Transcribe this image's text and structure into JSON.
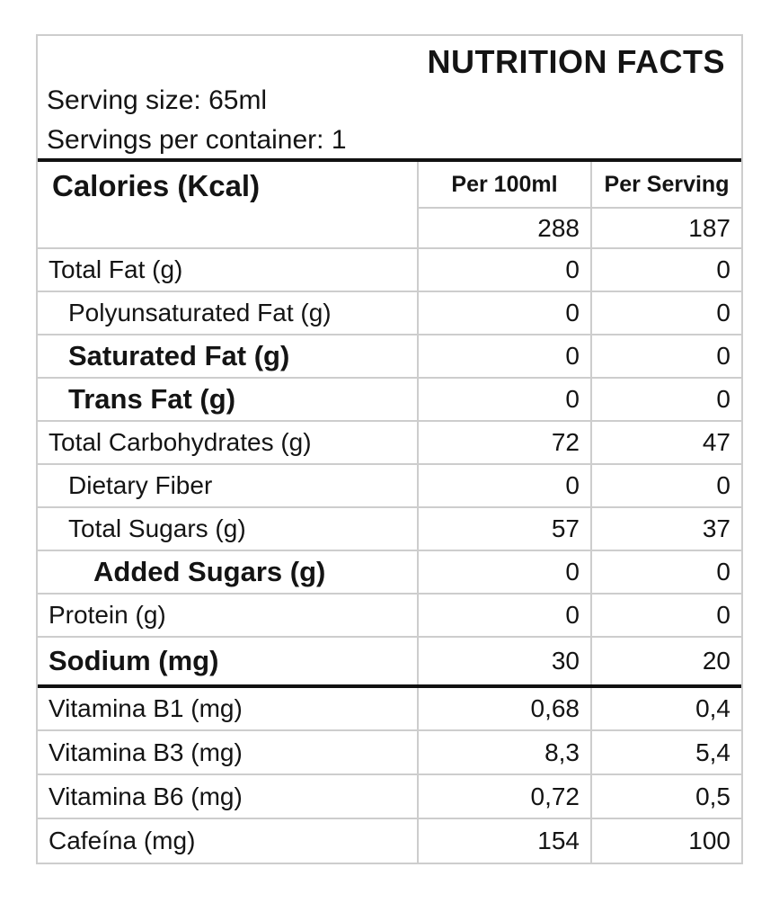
{
  "header": {
    "title": "NUTRITION FACTS",
    "serving_size": "Serving size: 65ml",
    "servings_per_container": "Servings per container: 1"
  },
  "table": {
    "calories_label": "Calories (Kcal)",
    "columns": {
      "per_100ml": "Per 100ml",
      "per_serving": "Per Serving"
    },
    "calories_values": {
      "per_100ml": "288",
      "per_serving": "187"
    },
    "rows": [
      {
        "label": "Total Fat (g)",
        "per_100ml": "0",
        "per_serving": "0"
      },
      {
        "label": "Polyunsaturated Fat (g)",
        "per_100ml": "0",
        "per_serving": "0"
      },
      {
        "label": "Saturated Fat (g)",
        "per_100ml": "0",
        "per_serving": "0"
      },
      {
        "label": "Trans Fat (g)",
        "per_100ml": "0",
        "per_serving": "0"
      },
      {
        "label": "Total Carbohydrates (g)",
        "per_100ml": "72",
        "per_serving": "47"
      },
      {
        "label": "Dietary Fiber",
        "per_100ml": "0",
        "per_serving": "0"
      },
      {
        "label": "Total Sugars (g)",
        "per_100ml": "57",
        "per_serving": "37"
      },
      {
        "label": "Added Sugars (g)",
        "per_100ml": "0",
        "per_serving": "0"
      },
      {
        "label": "Protein (g)",
        "per_100ml": "0",
        "per_serving": "0"
      },
      {
        "label": "Sodium (mg)",
        "per_100ml": "30",
        "per_serving": "20"
      },
      {
        "label": "Vitamina B1 (mg)",
        "per_100ml": "0,68",
        "per_serving": "0,4"
      },
      {
        "label": "Vitamina B3 (mg)",
        "per_100ml": "8,3",
        "per_serving": "5,4"
      },
      {
        "label": "Vitamina B6 (mg)",
        "per_100ml": "0,72",
        "per_serving": "0,5"
      },
      {
        "label": "Cafeína (mg)",
        "per_100ml": "154",
        "per_serving": "100"
      }
    ]
  },
  "colors": {
    "background": "#ffffff",
    "text": "#141414",
    "thin_border": "#cdcdcd",
    "thick_border": "#111111"
  }
}
